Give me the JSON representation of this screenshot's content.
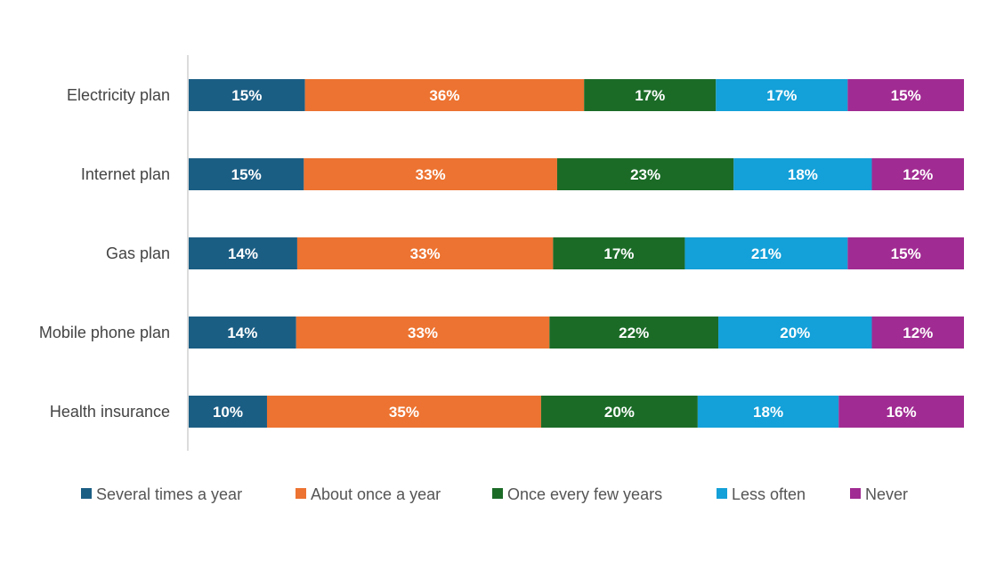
{
  "chart_data": {
    "type": "bar",
    "orientation": "horizontal",
    "stacked": "100%",
    "categories": [
      "Electricity plan",
      "Internet plan",
      "Gas plan",
      "Mobile phone plan",
      "Health insurance"
    ],
    "series": [
      {
        "name": "Several times a year",
        "color": "#1b5e84",
        "values": [
          15,
          15,
          14,
          14,
          10
        ],
        "labels": [
          "15%",
          "15%",
          "14%",
          "14%",
          "10%"
        ]
      },
      {
        "name": "About once a year",
        "color": "#ec7331",
        "values": [
          36,
          33,
          33,
          33,
          35
        ],
        "labels": [
          "36%",
          "33%",
          "33%",
          "33%",
          "35%"
        ]
      },
      {
        "name": "Once every few years",
        "color": "#1b6b27",
        "values": [
          17,
          23,
          17,
          22,
          20
        ],
        "labels": [
          "17%",
          "23%",
          "17%",
          "22%",
          "20%"
        ]
      },
      {
        "name": "Less often",
        "color": "#14a0d8",
        "values": [
          17,
          18,
          21,
          20,
          18
        ],
        "labels": [
          "17%",
          "18%",
          "21%",
          "20%",
          "18%"
        ]
      },
      {
        "name": "Never",
        "color": "#a02b92",
        "values": [
          15,
          12,
          15,
          12,
          16
        ],
        "labels": [
          "15%",
          "12%",
          "15%",
          "12%",
          "16%"
        ]
      }
    ],
    "legend": "bottom",
    "grid": false
  }
}
